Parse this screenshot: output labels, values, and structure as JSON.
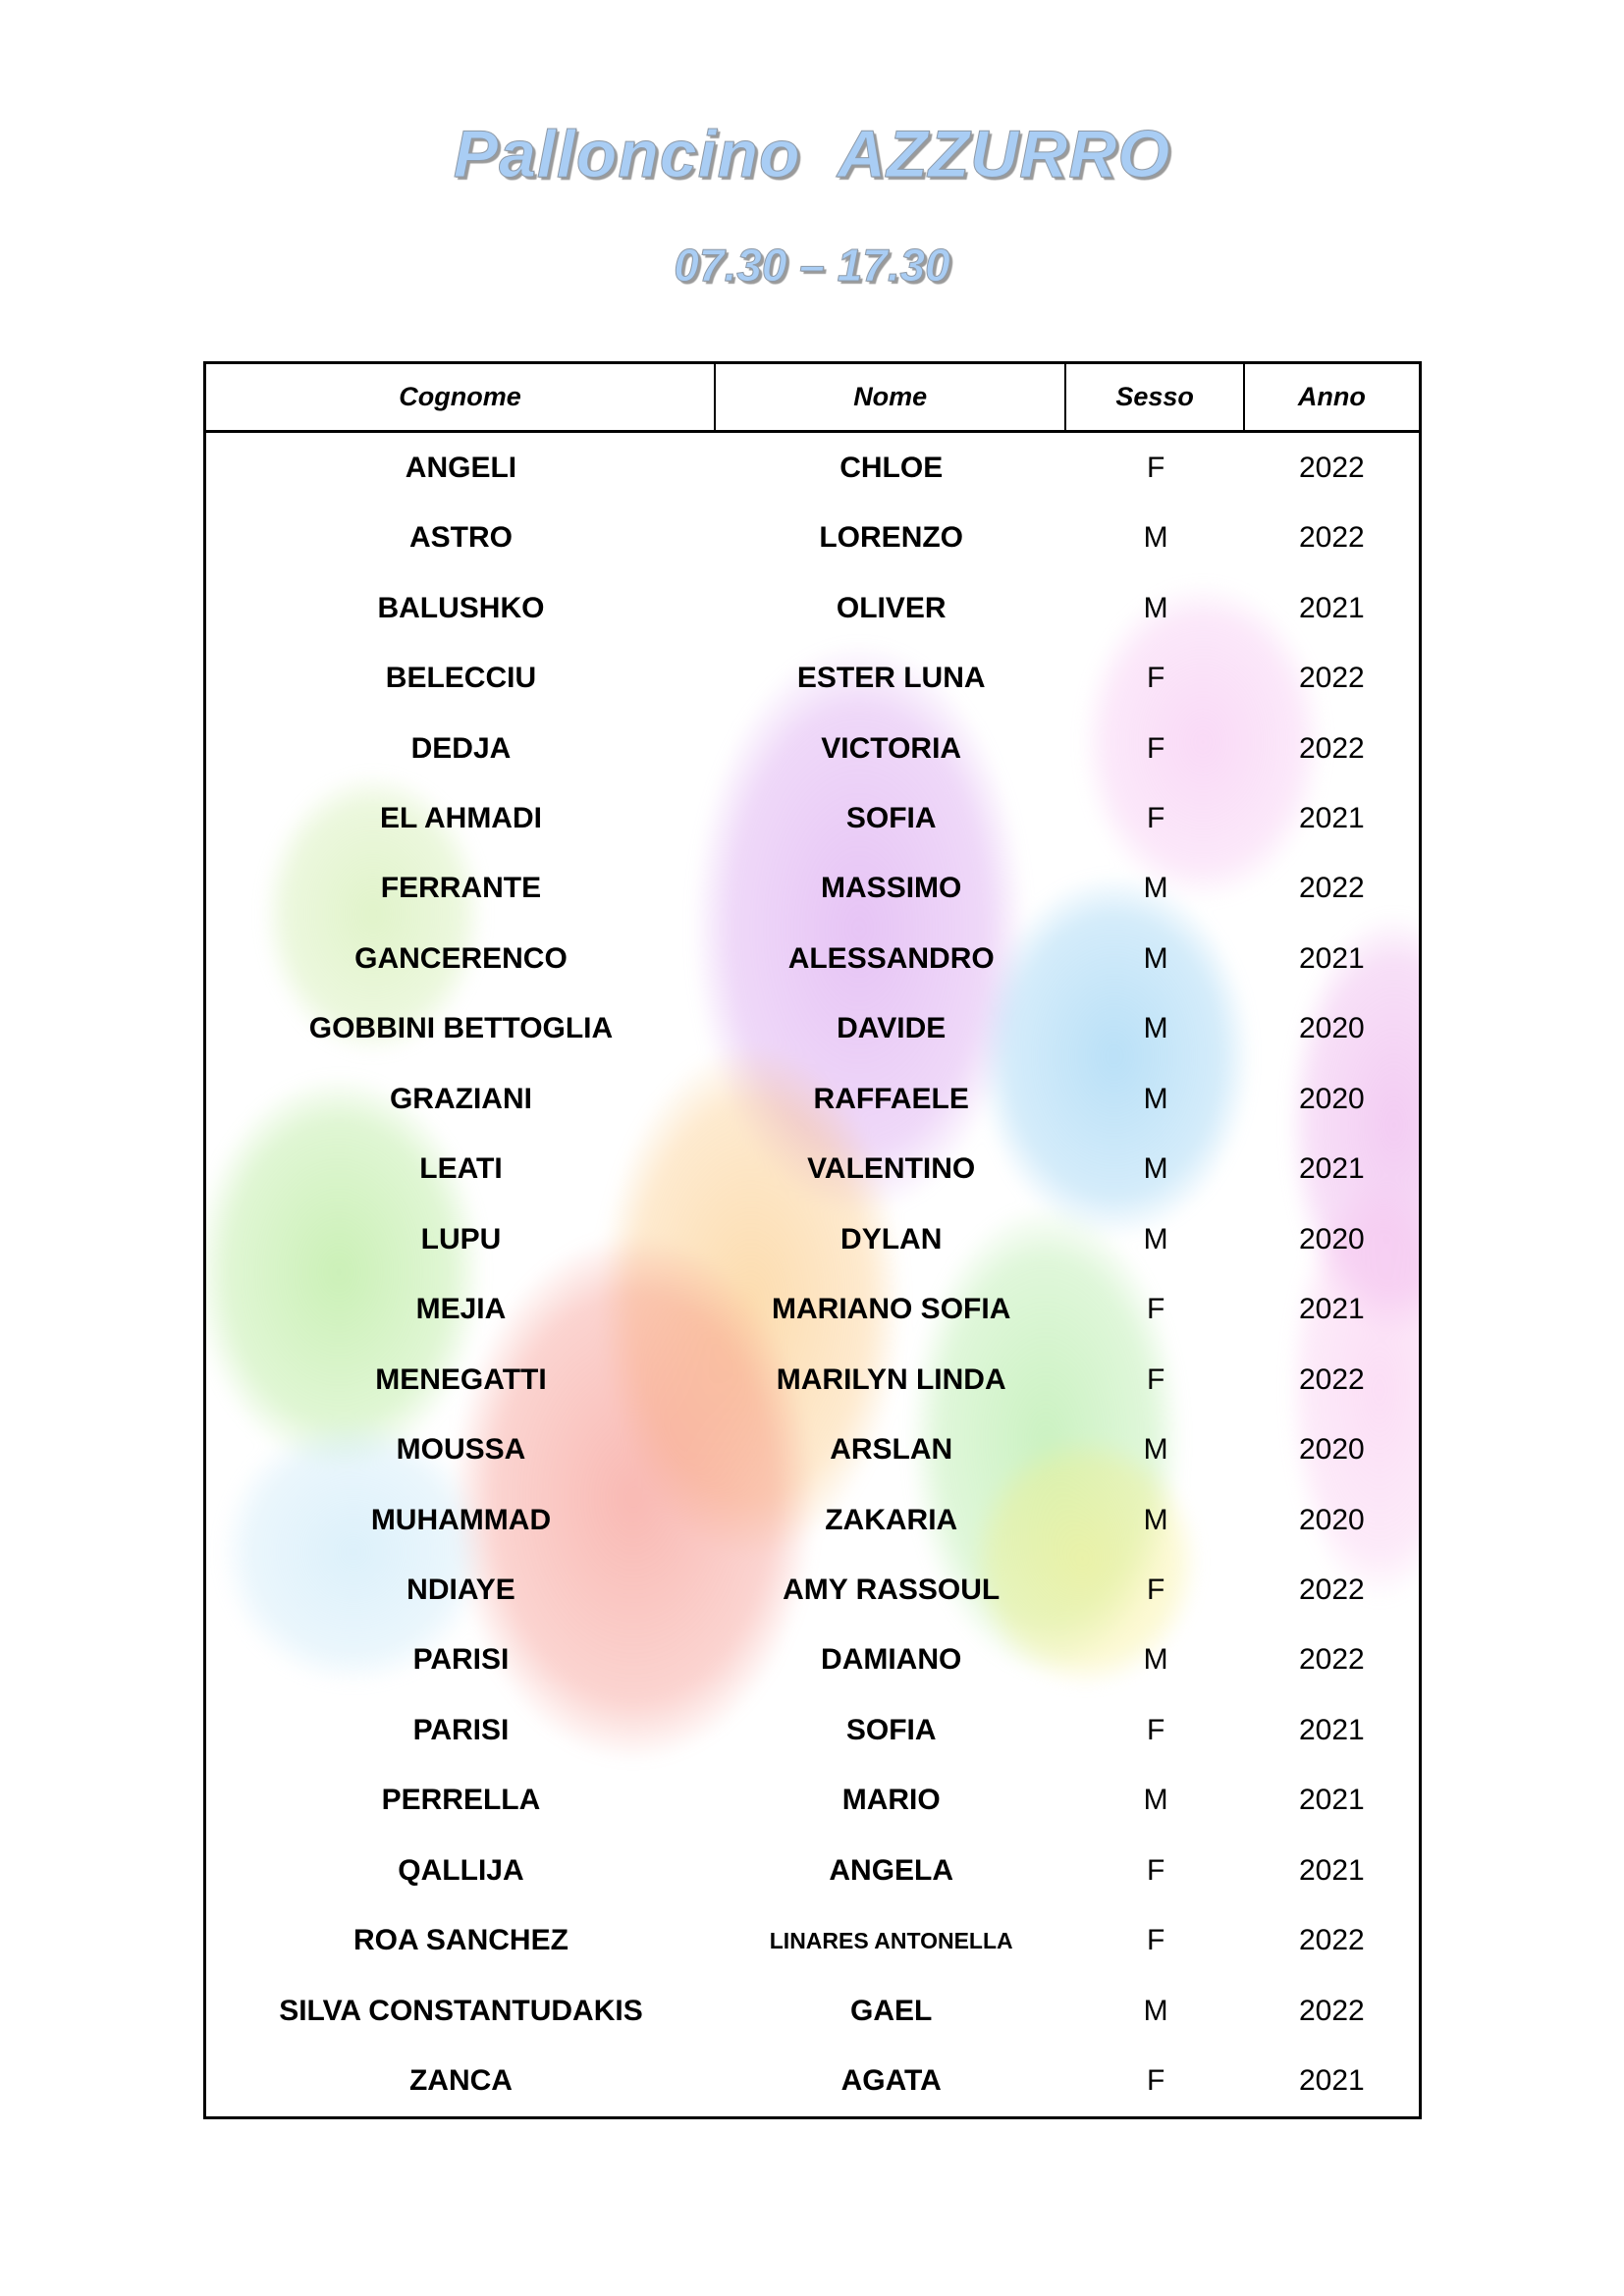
{
  "title": "Palloncino  AZZURRO",
  "subtitle": "07.30 – 17.30",
  "colors": {
    "title_fill": "#a9cdf4",
    "title_shadow": "#9a9a9a",
    "table_border": "#000000",
    "text": "#000000"
  },
  "watermark_colors": [
    "#d08eec",
    "#f2acec",
    "#7ac4f0",
    "#fabA60",
    "#98e270",
    "#f3796e",
    "#8ee27a",
    "#f6eE84",
    "#bae2f6",
    "#c3e896"
  ],
  "table": {
    "headers": [
      "Cognome",
      "Nome",
      "Sesso",
      "Anno"
    ],
    "rows": [
      {
        "cognome": "ANGELI",
        "nome": "CHLOE",
        "sesso": "F",
        "anno": "2022"
      },
      {
        "cognome": "ASTRO",
        "nome": "LORENZO",
        "sesso": "M",
        "anno": "2022"
      },
      {
        "cognome": "BALUSHKO",
        "nome": "OLIVER",
        "sesso": "M",
        "anno": "2021"
      },
      {
        "cognome": "BELECCIU",
        "nome": "ESTER LUNA",
        "sesso": "F",
        "anno": "2022"
      },
      {
        "cognome": "DEDJA",
        "nome": "VICTORIA",
        "sesso": "F",
        "anno": "2022"
      },
      {
        "cognome": "EL AHMADI",
        "nome": "SOFIA",
        "sesso": "F",
        "anno": "2021"
      },
      {
        "cognome": "FERRANTE",
        "nome": "MASSIMO",
        "sesso": "M",
        "anno": "2022"
      },
      {
        "cognome": "GANCERENCO",
        "nome": "ALESSANDRO",
        "sesso": "M",
        "anno": "2021"
      },
      {
        "cognome": "GOBBINI BETTOGLIA",
        "nome": "DAVIDE",
        "sesso": "M",
        "anno": "2020"
      },
      {
        "cognome": "GRAZIANI",
        "nome": "RAFFAELE",
        "sesso": "M",
        "anno": "2020"
      },
      {
        "cognome": "LEATI",
        "nome": "VALENTINO",
        "sesso": "M",
        "anno": "2021"
      },
      {
        "cognome": "LUPU",
        "nome": "DYLAN",
        "sesso": "M",
        "anno": "2020"
      },
      {
        "cognome": "MEJIA",
        "nome": "MARIANO SOFIA",
        "sesso": "F",
        "anno": "2021"
      },
      {
        "cognome": "MENEGATTI",
        "nome": "MARILYN LINDA",
        "sesso": "F",
        "anno": "2022"
      },
      {
        "cognome": "MOUSSA",
        "nome": "ARSLAN",
        "sesso": "M",
        "anno": "2020"
      },
      {
        "cognome": "MUHAMMAD",
        "nome": "ZAKARIA",
        "sesso": "M",
        "anno": "2020"
      },
      {
        "cognome": "NDIAYE",
        "nome": "AMY RASSOUL",
        "sesso": "F",
        "anno": "2022"
      },
      {
        "cognome": "PARISI",
        "nome": "DAMIANO",
        "sesso": "M",
        "anno": "2022"
      },
      {
        "cognome": "PARISI",
        "nome": "SOFIA",
        "sesso": "F",
        "anno": "2021"
      },
      {
        "cognome": "PERRELLA",
        "nome": "MARIO",
        "sesso": "M",
        "anno": "2021"
      },
      {
        "cognome": "QALLIJA",
        "nome": "ANGELA",
        "sesso": "F",
        "anno": "2021"
      },
      {
        "cognome": "ROA SANCHEZ",
        "nome": "LINARES ANTONELLA",
        "sesso": "F",
        "anno": "2022",
        "nome_small": true
      },
      {
        "cognome": "SILVA CONSTANTUDAKIS",
        "nome": "GAEL",
        "sesso": "M",
        "anno": "2022"
      },
      {
        "cognome": "ZANCA",
        "nome": "AGATA",
        "sesso": "F",
        "anno": "2021"
      }
    ]
  }
}
